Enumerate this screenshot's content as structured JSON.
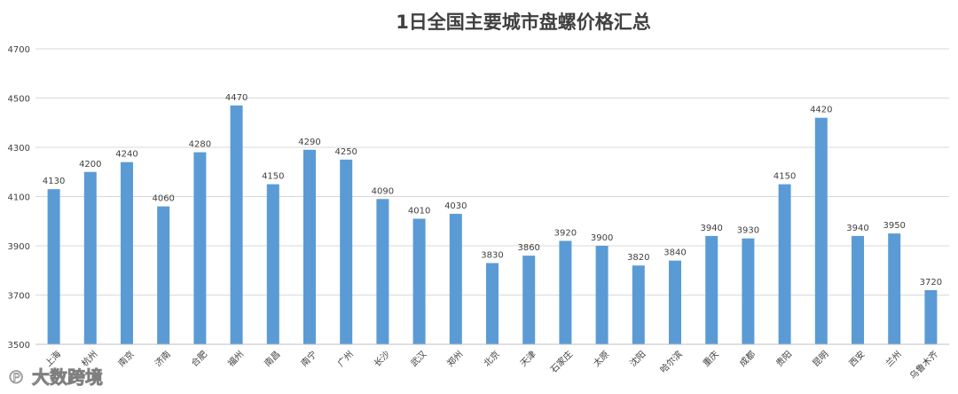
{
  "chart_data": {
    "type": "bar",
    "title": "1日全国主要城市盘螺价格汇总",
    "categories": [
      "上海",
      "杭州",
      "南京",
      "济南",
      "合肥",
      "福州",
      "南昌",
      "南宁",
      "广州",
      "长沙",
      "武汉",
      "郑州",
      "北京",
      "天津",
      "石家庄",
      "太原",
      "沈阳",
      "哈尔滨",
      "重庆",
      "成都",
      "贵阳",
      "昆明",
      "西安",
      "兰州",
      "乌鲁木齐"
    ],
    "series": [
      {
        "values": [
          4130,
          4200,
          4240,
          4060,
          4280,
          4470,
          4150,
          4290,
          4250,
          4090,
          4010,
          4030,
          3830,
          3860,
          3920,
          3900,
          3820,
          3840,
          3940,
          3930,
          4150,
          4420,
          3940,
          3950,
          3720
        ]
      }
    ],
    "ylim": [
      3500,
      4700
    ],
    "yticks": [
      3500,
      3700,
      3900,
      4100,
      4300,
      4500,
      4700
    ],
    "grid": true,
    "legend": "none",
    "bar_color": "#5b9bd5"
  },
  "watermark": {
    "text": "大数跨境"
  }
}
